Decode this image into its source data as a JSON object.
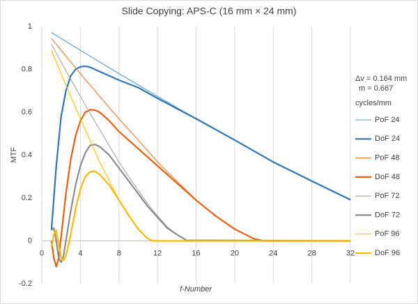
{
  "chart_data": {
    "type": "line",
    "title": "Slide Copying: APS-C (16 mm × 24 mm)",
    "xlabel": "f-Number",
    "ylabel": "MTF",
    "annotations": [
      "Δv = 0.164 mm",
      "m = 0.667"
    ],
    "legend_title": "cycles/mm",
    "legend": "right",
    "grid": true,
    "xlim": [
      0,
      32
    ],
    "xticks": [
      0,
      4,
      8,
      12,
      16,
      20,
      24,
      28,
      32
    ],
    "ylim": [
      -0.2,
      1
    ],
    "yticks": [
      -0.2,
      0,
      0.2,
      0.4,
      0.6,
      0.8,
      1
    ],
    "series": [
      {
        "name": "PoF 24",
        "color": "#5b9bd5",
        "line_width": 1,
        "x": [
          1,
          4,
          8,
          12,
          16,
          20,
          24,
          28,
          32
        ],
        "values": [
          0.972,
          0.889,
          0.78,
          0.674,
          0.57,
          0.47,
          0.368,
          0.279,
          0.192
        ]
      },
      {
        "name": "DoF 24",
        "color": "#2e75b6",
        "line_width": 2,
        "x": [
          1,
          1.5,
          2,
          2.5,
          3,
          3.5,
          4,
          4.5,
          5,
          6,
          7,
          8,
          10,
          12,
          16,
          20,
          24,
          28,
          32
        ],
        "values": [
          0.05,
          0.35,
          0.58,
          0.7,
          0.77,
          0.8,
          0.812,
          0.815,
          0.81,
          0.79,
          0.77,
          0.75,
          0.715,
          0.665,
          0.57,
          0.47,
          0.368,
          0.279,
          0.192
        ]
      },
      {
        "name": "PoF 48",
        "color": "#ed7d31",
        "line_width": 1,
        "x": [
          1,
          2,
          4,
          6,
          8,
          10,
          12,
          14,
          16,
          18,
          20,
          22,
          23
        ],
        "values": [
          0.945,
          0.889,
          0.78,
          0.674,
          0.57,
          0.47,
          0.368,
          0.279,
          0.192,
          0.117,
          0.055,
          0.01,
          0
        ]
      },
      {
        "name": "DoF 48",
        "color": "#e8600f",
        "line_width": 2,
        "x": [
          1,
          1.25,
          1.5,
          1.75,
          2,
          2.5,
          3,
          3.5,
          4,
          4.5,
          5,
          5.5,
          6,
          7,
          8,
          10,
          12,
          14,
          16,
          18,
          20,
          22,
          23,
          32
        ],
        "values": [
          0.0,
          -0.08,
          -0.12,
          -0.08,
          0.02,
          0.22,
          0.38,
          0.49,
          0.56,
          0.6,
          0.612,
          0.61,
          0.6,
          0.56,
          0.51,
          0.43,
          0.35,
          0.27,
          0.19,
          0.117,
          0.055,
          0.01,
          0,
          0
        ]
      },
      {
        "name": "PoF 72",
        "color": "#a5a5a5",
        "line_width": 1,
        "x": [
          1,
          2,
          3,
          4,
          5,
          6,
          7,
          8,
          9,
          10,
          11,
          12,
          13,
          14,
          15
        ],
        "values": [
          0.917,
          0.835,
          0.753,
          0.674,
          0.595,
          0.52,
          0.443,
          0.368,
          0.3,
          0.235,
          0.171,
          0.117,
          0.066,
          0.03,
          0.003
        ]
      },
      {
        "name": "DoF 72",
        "color": "#8c8c8c",
        "line_width": 2,
        "x": [
          1,
          1.25,
          1.5,
          1.75,
          2,
          2.25,
          2.5,
          3,
          3.5,
          4,
          4.5,
          5,
          5.5,
          6,
          7,
          8,
          9,
          10,
          11,
          12,
          13,
          14,
          15,
          32
        ],
        "values": [
          0.05,
          0.06,
          0.0,
          -0.08,
          -0.1,
          -0.07,
          0.0,
          0.14,
          0.26,
          0.35,
          0.41,
          0.445,
          0.45,
          0.44,
          0.4,
          0.34,
          0.28,
          0.22,
          0.16,
          0.11,
          0.06,
          0.03,
          0.003,
          0
        ]
      },
      {
        "name": "PoF 96",
        "color": "#ffc000",
        "line_width": 1,
        "x": [
          1,
          2,
          3,
          4,
          5,
          6,
          7,
          8,
          9,
          10,
          11,
          11.5
        ],
        "values": [
          0.889,
          0.78,
          0.674,
          0.57,
          0.47,
          0.368,
          0.279,
          0.192,
          0.117,
          0.055,
          0.01,
          0
        ]
      },
      {
        "name": "DoF 96",
        "color": "#ffb900",
        "line_width": 2,
        "x": [
          1,
          1.25,
          1.5,
          1.75,
          2,
          2.25,
          2.5,
          3,
          3.5,
          4,
          4.5,
          5,
          5.5,
          6,
          7,
          8,
          9,
          10,
          11,
          11.5,
          32
        ],
        "values": [
          -0.03,
          0.03,
          0.05,
          -0.02,
          -0.08,
          -0.09,
          -0.07,
          0.03,
          0.15,
          0.24,
          0.3,
          0.322,
          0.325,
          0.31,
          0.26,
          0.19,
          0.12,
          0.055,
          0.01,
          0,
          0
        ]
      }
    ]
  }
}
